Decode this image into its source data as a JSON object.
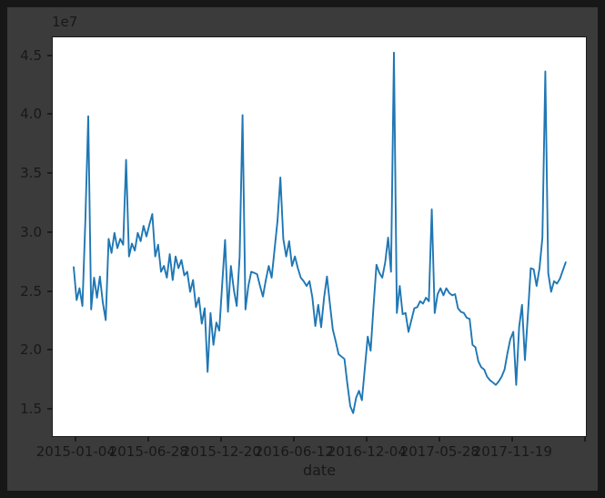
{
  "figure": {
    "offset_label": "1e7",
    "xlabel": "date",
    "background_color": "#3b3b3b",
    "frame_color": "#171717",
    "plot_background": "#ffffff",
    "text_color": "#181818"
  },
  "chart_data": {
    "type": "line",
    "title": "",
    "xlabel": "date",
    "ylabel": "",
    "y_offset_label": "1e7",
    "grid": false,
    "legend": false,
    "line_color": "#1f77b4",
    "x_start_date": "2014-12-28",
    "x_step_days": 7,
    "x_tick_labels": [
      "2015-01-04",
      "2015-06-28",
      "2015-12-20",
      "2016-06-12",
      "2016-12-04",
      "2017-05-28",
      "2017-11-19"
    ],
    "y_tick_labels": [
      "4.5",
      "4.0",
      "3.5",
      "3.0",
      "2.5",
      "2.0",
      "1.5"
    ],
    "y_tick_values": [
      4.5,
      4.0,
      3.5,
      3.0,
      2.5,
      2.0,
      1.5
    ],
    "ylim": [
      1.26,
      4.66
    ],
    "values_scale": 10000000,
    "values": [
      2.71,
      2.43,
      2.53,
      2.38,
      3.1,
      3.99,
      2.35,
      2.62,
      2.45,
      2.63,
      2.41,
      2.26,
      2.95,
      2.83,
      3.0,
      2.87,
      2.95,
      2.9,
      3.62,
      2.8,
      2.91,
      2.85,
      3.0,
      2.93,
      3.06,
      2.97,
      3.07,
      3.16,
      2.8,
      2.9,
      2.67,
      2.72,
      2.62,
      2.82,
      2.6,
      2.8,
      2.7,
      2.77,
      2.64,
      2.67,
      2.5,
      2.6,
      2.37,
      2.45,
      2.23,
      2.36,
      1.82,
      2.32,
      2.05,
      2.24,
      2.17,
      2.56,
      2.94,
      2.33,
      2.72,
      2.52,
      2.38,
      2.8,
      4.0,
      2.35,
      2.55,
      2.67,
      2.66,
      2.65,
      2.55,
      2.46,
      2.6,
      2.72,
      2.62,
      2.86,
      3.1,
      3.47,
      2.95,
      2.8,
      2.93,
      2.72,
      2.8,
      2.7,
      2.62,
      2.59,
      2.55,
      2.59,
      2.45,
      2.21,
      2.39,
      2.2,
      2.45,
      2.63,
      2.4,
      2.18,
      2.08,
      1.97,
      1.95,
      1.93,
      1.72,
      1.53,
      1.47,
      1.6,
      1.66,
      1.58,
      1.85,
      2.12,
      2.0,
      2.38,
      2.73,
      2.66,
      2.62,
      2.75,
      2.96,
      2.67,
      4.53,
      2.32,
      2.55,
      2.31,
      2.32,
      2.16,
      2.26,
      2.36,
      2.37,
      2.42,
      2.4,
      2.45,
      2.42,
      3.2,
      2.32,
      2.48,
      2.53,
      2.47,
      2.53,
      2.49,
      2.47,
      2.48,
      2.36,
      2.33,
      2.32,
      2.28,
      2.27,
      2.05,
      2.03,
      1.91,
      1.86,
      1.84,
      1.78,
      1.75,
      1.73,
      1.71,
      1.74,
      1.78,
      1.84,
      1.98,
      2.1,
      2.16,
      1.71,
      2.2,
      2.39,
      1.92,
      2.3,
      2.7,
      2.69,
      2.55,
      2.7,
      2.96,
      4.37,
      2.66,
      2.5,
      2.59,
      2.57,
      2.61,
      2.68,
      2.75
    ]
  }
}
